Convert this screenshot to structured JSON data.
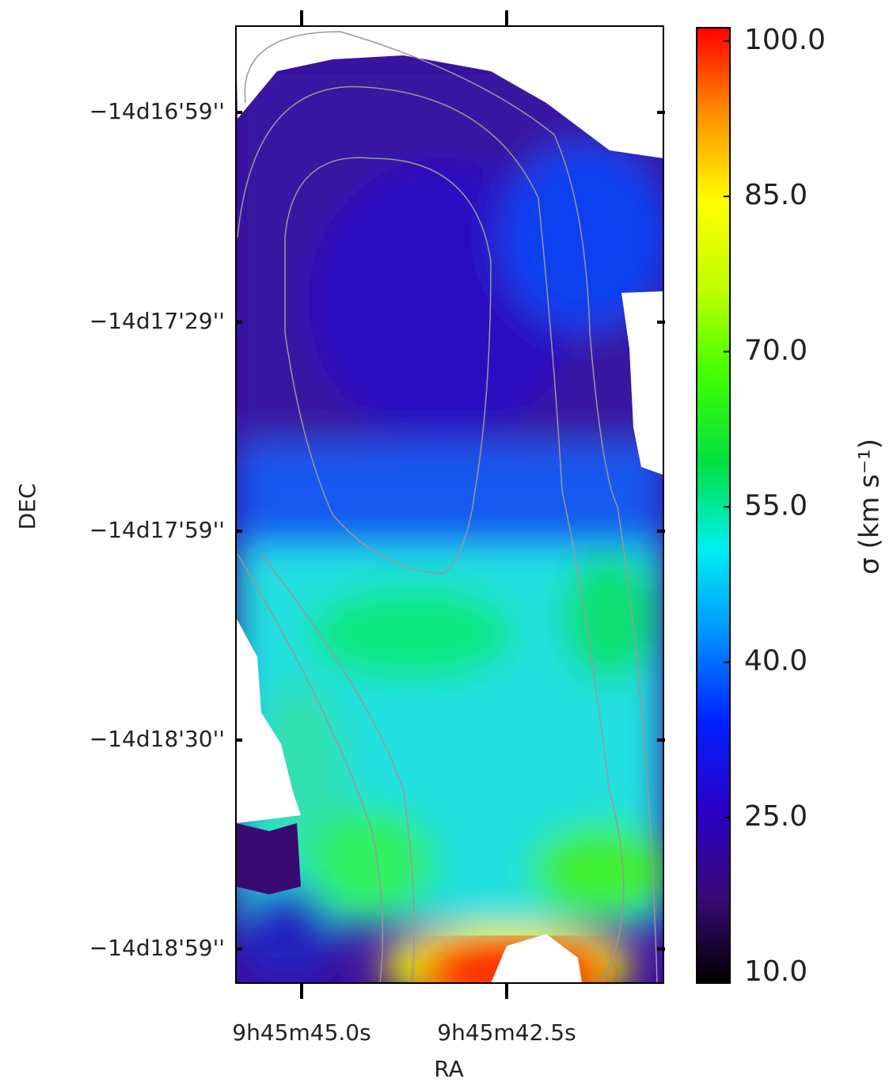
{
  "chart_data": {
    "type": "image-map",
    "xlabel": "RA",
    "ylabel": "DEC",
    "xtick_labels": [
      "9h45m45.0s",
      "9h45m42.5s"
    ],
    "ytick_labels": [
      "−14d16'59''",
      "−14d17'29''",
      "−14d17'59''",
      "−14d18'30''",
      "−14d18'59''"
    ],
    "colorbar": {
      "label": "σ (km s⁻¹)",
      "lim": [
        9,
        101.3
      ],
      "ticks": [
        {
          "value": 10,
          "label": "10.0"
        },
        {
          "value": 25,
          "label": "25.0"
        },
        {
          "value": 40,
          "label": "40.0"
        },
        {
          "value": 55,
          "label": "55.0"
        },
        {
          "value": 70,
          "label": "70.0"
        },
        {
          "value": 85,
          "label": "85.0"
        },
        {
          "value": 100,
          "label": "100.0"
        }
      ],
      "colors": [
        "#000000",
        "#3a0a78",
        "#2a00c8",
        "#0020ff",
        "#0090ff",
        "#00f0f0",
        "#00e040",
        "#40ff00",
        "#c0ff00",
        "#ffff00",
        "#ff9000",
        "#ff0000"
      ]
    }
  }
}
